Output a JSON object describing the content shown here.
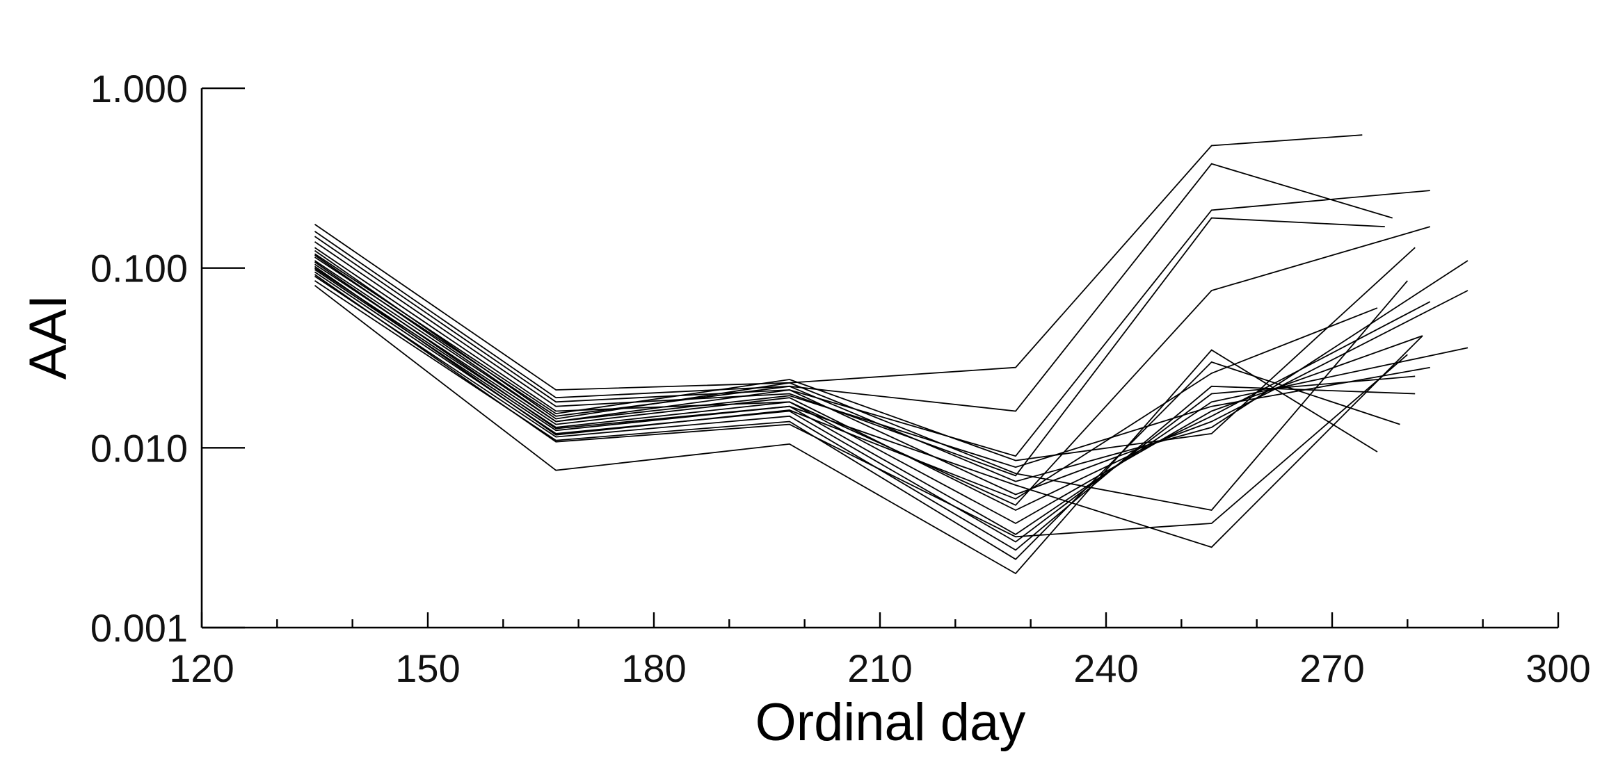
{
  "chart_data": {
    "type": "line",
    "title": "",
    "xlabel": "Ordinal day",
    "ylabel": "AAI",
    "xlim": [
      120,
      300
    ],
    "ylim": [
      0.001,
      1.0
    ],
    "y_scale": "log",
    "grid": false,
    "legend": "none",
    "x_ticks": [
      120,
      150,
      180,
      210,
      240,
      270,
      300
    ],
    "x_tick_labels": [
      "120",
      "150",
      "180",
      "210",
      "240",
      "270",
      "300"
    ],
    "y_ticks": [
      0.001,
      0.01,
      0.1,
      1.0
    ],
    "y_tick_labels": [
      "0.001",
      "0.010",
      "0.100",
      "1.000"
    ],
    "x_minor_ticks": [
      130,
      140,
      160,
      170,
      190,
      200,
      220,
      230,
      250,
      260,
      280,
      290
    ],
    "series": [
      {
        "x": [
          135,
          167,
          198,
          228,
          254,
          274
        ],
        "y": [
          0.175,
          0.021,
          0.023,
          0.028,
          0.48,
          0.55
        ]
      },
      {
        "x": [
          135,
          167,
          198,
          228,
          254,
          278
        ],
        "y": [
          0.16,
          0.019,
          0.022,
          0.016,
          0.38,
          0.19
        ]
      },
      {
        "x": [
          135,
          167,
          198,
          228,
          254,
          283
        ],
        "y": [
          0.15,
          0.018,
          0.021,
          0.009,
          0.21,
          0.27
        ]
      },
      {
        "x": [
          135,
          167,
          198,
          228,
          254,
          277
        ],
        "y": [
          0.14,
          0.017,
          0.02,
          0.007,
          0.19,
          0.17
        ]
      },
      {
        "x": [
          135,
          167,
          198,
          228,
          254,
          283
        ],
        "y": [
          0.13,
          0.016,
          0.018,
          0.0048,
          0.075,
          0.17
        ]
      },
      {
        "x": [
          135,
          167,
          198,
          228,
          254,
          281
        ],
        "y": [
          0.12,
          0.0155,
          0.024,
          0.0085,
          0.012,
          0.13
        ]
      },
      {
        "x": [
          135,
          167,
          198,
          228,
          254,
          288
        ],
        "y": [
          0.115,
          0.015,
          0.022,
          0.0065,
          0.013,
          0.11
        ]
      },
      {
        "x": [
          135,
          167,
          198,
          228,
          254,
          288
        ],
        "y": [
          0.11,
          0.014,
          0.021,
          0.0055,
          0.014,
          0.075
        ]
      },
      {
        "x": [
          135,
          167,
          198,
          228,
          254,
          283
        ],
        "y": [
          0.105,
          0.0135,
          0.019,
          0.0045,
          0.015,
          0.065
        ]
      },
      {
        "x": [
          135,
          167,
          198,
          228,
          254,
          282
        ],
        "y": [
          0.1,
          0.013,
          0.018,
          0.0038,
          0.016,
          0.042
        ]
      },
      {
        "x": [
          135,
          167,
          198,
          228,
          254,
          288
        ],
        "y": [
          0.098,
          0.0125,
          0.017,
          0.0033,
          0.018,
          0.036
        ]
      },
      {
        "x": [
          135,
          167,
          198,
          228,
          254,
          281
        ],
        "y": [
          0.095,
          0.012,
          0.016,
          0.003,
          0.02,
          0.025
        ]
      },
      {
        "x": [
          135,
          167,
          198,
          228,
          254,
          281
        ],
        "y": [
          0.09,
          0.0115,
          0.015,
          0.0027,
          0.022,
          0.02
        ]
      },
      {
        "x": [
          135,
          167,
          198,
          228,
          254,
          279
        ],
        "y": [
          0.085,
          0.011,
          0.014,
          0.0024,
          0.03,
          0.0135
        ]
      },
      {
        "x": [
          135,
          167,
          198,
          228,
          254,
          276
        ],
        "y": [
          0.08,
          0.0075,
          0.0105,
          0.002,
          0.035,
          0.0095
        ]
      },
      {
        "x": [
          135,
          167,
          198,
          228,
          254,
          280
        ],
        "y": [
          0.125,
          0.0145,
          0.023,
          0.0072,
          0.0045,
          0.085
        ]
      },
      {
        "x": [
          135,
          167,
          198,
          228,
          254,
          282
        ],
        "y": [
          0.108,
          0.0128,
          0.017,
          0.0062,
          0.0028,
          0.042
        ]
      },
      {
        "x": [
          135,
          167,
          198,
          228,
          254,
          280
        ],
        "y": [
          0.092,
          0.0108,
          0.0135,
          0.0032,
          0.0038,
          0.033
        ]
      },
      {
        "x": [
          135,
          167,
          198,
          228,
          254,
          276
        ],
        "y": [
          0.102,
          0.0118,
          0.0162,
          0.0052,
          0.026,
          0.06
        ]
      },
      {
        "x": [
          135,
          167,
          198,
          228,
          254,
          283
        ],
        "y": [
          0.118,
          0.014,
          0.0195,
          0.0078,
          0.017,
          0.028
        ]
      }
    ]
  }
}
